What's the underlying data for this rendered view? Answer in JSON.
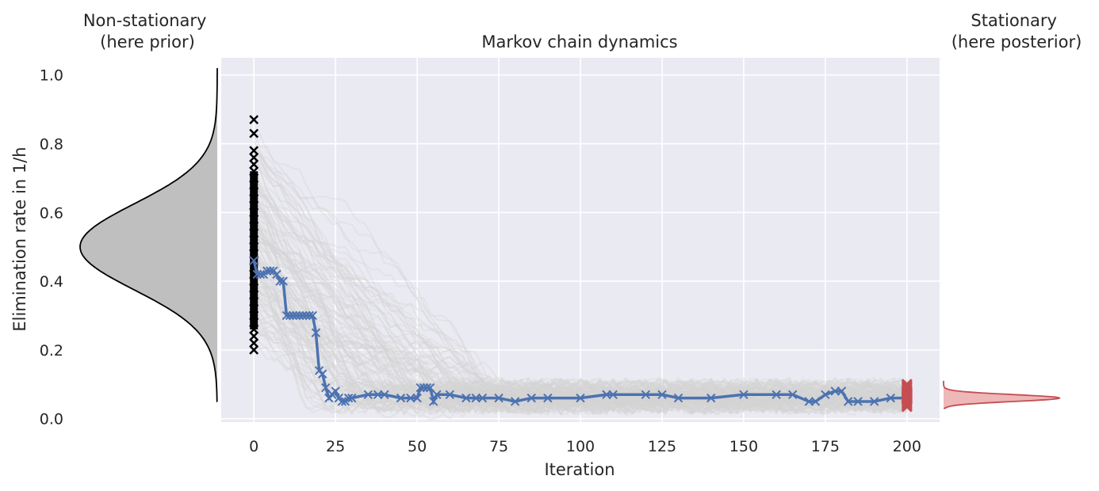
{
  "chart_data": {
    "type": "line",
    "title": "Markov chain dynamics",
    "xlabel": "Iteration",
    "ylabel": "Elimination rate in 1/h",
    "xlim": [
      -10,
      210
    ],
    "ylim": [
      -0.01,
      1.05
    ],
    "xticks": [
      "0",
      "25",
      "50",
      "75",
      "100",
      "125",
      "150",
      "175",
      "200"
    ],
    "xtick_values": [
      0,
      25,
      50,
      75,
      100,
      125,
      150,
      175,
      200
    ],
    "yticks": [
      "0.0",
      "0.2",
      "0.4",
      "0.6",
      "0.8",
      "1.0"
    ],
    "ytick_values": [
      0.0,
      0.2,
      0.4,
      0.6,
      0.8,
      1.0
    ],
    "grid": true,
    "left_panel_title": "Non-stationary\n(here prior)",
    "right_panel_title": "Stationary\n(here posterior)",
    "prior_distribution": {
      "mean": 0.5,
      "sd": 0.125,
      "range": [
        0.05,
        1.02
      ]
    },
    "posterior_distribution": {
      "mean": 0.06,
      "sd": 0.01,
      "range": [
        0.03,
        0.11
      ]
    },
    "initial_samples_at_x0": [
      0.87,
      0.83,
      0.78,
      0.76,
      0.74,
      0.72,
      0.7,
      0.68,
      0.66,
      0.64,
      0.62,
      0.6,
      0.58,
      0.56,
      0.54,
      0.52,
      0.5,
      0.48,
      0.46,
      0.44,
      0.42,
      0.4,
      0.38,
      0.36,
      0.34,
      0.32,
      0.3,
      0.28,
      0.26,
      0.24,
      0.22,
      0.2
    ],
    "final_samples_at_x200": [
      0.1,
      0.095,
      0.09,
      0.085,
      0.08,
      0.075,
      0.07,
      0.065,
      0.06,
      0.055,
      0.05,
      0.045,
      0.04,
      0.035
    ],
    "highlighted_chain": {
      "x": [
        0,
        1,
        2,
        3,
        4,
        5,
        6,
        7,
        8,
        9,
        10,
        11,
        12,
        13,
        14,
        15,
        16,
        17,
        18,
        19,
        20,
        21,
        22,
        23,
        24,
        25,
        26,
        27,
        28,
        29,
        30,
        35,
        38,
        40,
        45,
        48,
        50,
        51,
        52,
        53,
        54,
        55,
        56,
        60,
        65,
        68,
        70,
        75,
        80,
        85,
        90,
        100,
        108,
        110,
        120,
        125,
        130,
        140,
        150,
        160,
        165,
        170,
        172,
        175,
        178,
        180,
        182,
        185,
        190,
        195,
        200
      ],
      "y": [
        0.46,
        0.42,
        0.42,
        0.42,
        0.43,
        0.43,
        0.43,
        0.42,
        0.4,
        0.4,
        0.3,
        0.3,
        0.3,
        0.3,
        0.3,
        0.3,
        0.3,
        0.3,
        0.3,
        0.25,
        0.14,
        0.13,
        0.09,
        0.06,
        0.07,
        0.08,
        0.06,
        0.05,
        0.05,
        0.06,
        0.06,
        0.07,
        0.07,
        0.07,
        0.06,
        0.06,
        0.06,
        0.09,
        0.09,
        0.09,
        0.09,
        0.05,
        0.07,
        0.07,
        0.06,
        0.06,
        0.06,
        0.06,
        0.05,
        0.06,
        0.06,
        0.06,
        0.07,
        0.07,
        0.07,
        0.07,
        0.06,
        0.06,
        0.07,
        0.07,
        0.07,
        0.05,
        0.05,
        0.07,
        0.08,
        0.08,
        0.05,
        0.05,
        0.05,
        0.06,
        0.06
      ]
    },
    "background_chains": {
      "count": 120,
      "start_range": [
        0.2,
        0.87
      ],
      "decay_iterations": [
        15,
        85
      ],
      "stationary_band": [
        0.03,
        0.1
      ]
    },
    "colors": {
      "plot_background": "#eaeaf2",
      "grid": "#ffffff",
      "background_chains": "#d3d3d3",
      "highlighted_chain": "#4c72b0",
      "initial_markers": "#000000",
      "final_markers": "#c44e52",
      "prior_fill": "#bfbfbf",
      "prior_edge": "#000000",
      "posterior_fill": "#eeb7b8",
      "posterior_edge": "#c44e52"
    }
  }
}
